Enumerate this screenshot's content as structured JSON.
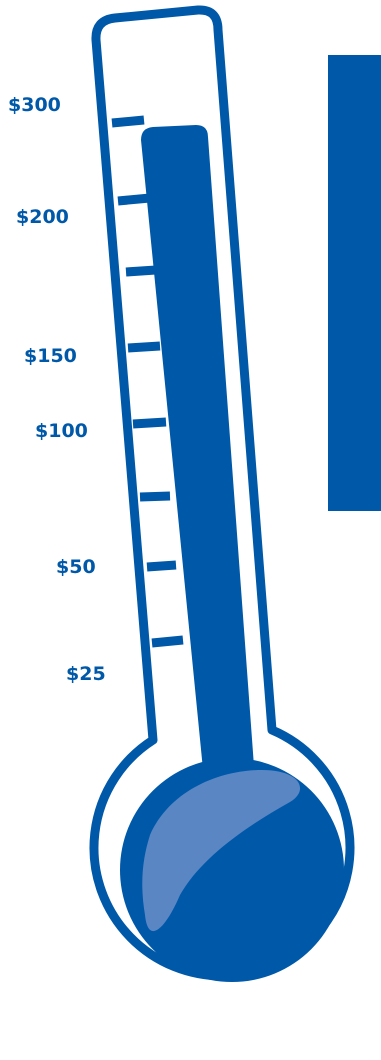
{
  "colors": {
    "primary": "#0058a8",
    "highlight": "#5a86c4",
    "background": "#ffffff"
  },
  "thermometer": {
    "fill_level": 0.8
  },
  "scale": {
    "labels": [
      {
        "text": "$300"
      },
      {
        "text": "$200"
      },
      {
        "text": "$150"
      },
      {
        "text": "$100"
      },
      {
        "text": "$50"
      },
      {
        "text": "$25"
      }
    ]
  },
  "goal_panel": {
    "text": ""
  }
}
